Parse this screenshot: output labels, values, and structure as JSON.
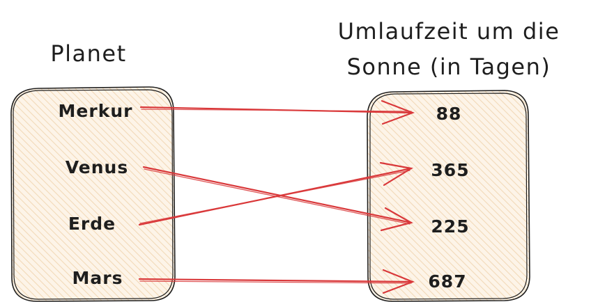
{
  "left_column": {
    "title": "Planet",
    "items": [
      "Merkur",
      "Venus",
      "Erde",
      "Mars"
    ]
  },
  "right_column": {
    "title_line1": "Umlaufzeit um die",
    "title_line2": "Sonne (in Tagen)",
    "items": [
      "88",
      "365",
      "225",
      "687"
    ]
  },
  "mappings": [
    {
      "from": "Merkur",
      "to": "88"
    },
    {
      "from": "Venus",
      "to": "225"
    },
    {
      "from": "Erde",
      "to": "365"
    },
    {
      "from": "Mars",
      "to": "687"
    }
  ],
  "colors": {
    "arrow": "#d9383a",
    "box_fill": "#fbeedd",
    "ink": "#1e1e1e"
  }
}
